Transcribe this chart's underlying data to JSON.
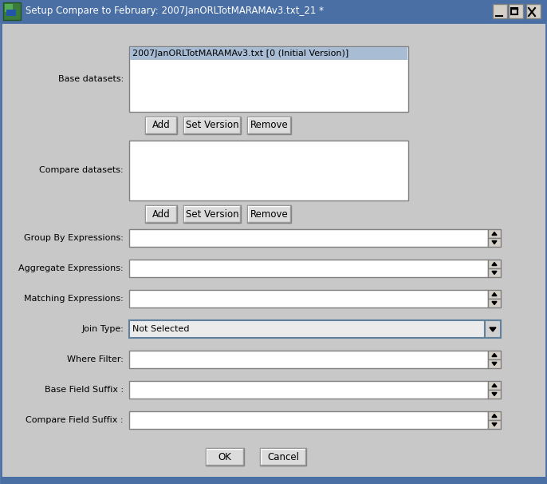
{
  "title_bar_text": "Setup Compare to February: 2007JanORLTotMARAMAv3.txt_21 *",
  "title_bar_bg": "#4a6fa5",
  "bg_color": "#c8c8c8",
  "base_dataset_item": "2007JanORLTotMARAMAv3.txt [0 (Initial Version)]",
  "base_dataset_item_bg": "#a8bcd4",
  "join_type_value": "Not Selected",
  "textbox_bg": "#ffffff",
  "button_bg": "#d4d0c8",
  "font_color": "#000000",
  "font_size": 8.0,
  "label_font_size": 8.0,
  "title_font_size": 8.5,
  "outer_border_color": "#4a6fa5",
  "inner_border_color": "#808080"
}
